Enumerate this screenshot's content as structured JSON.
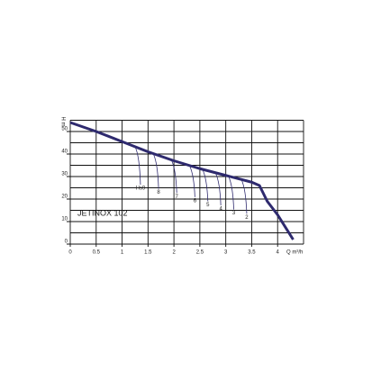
{
  "chart_data": {
    "type": "line",
    "title": "JETINOX 102",
    "x_label": "Q m³/h",
    "y_label": "H m",
    "x": [
      0,
      0.5,
      1,
      1.5,
      2,
      2.5,
      3,
      3.5,
      3.65,
      3.8,
      4.0,
      4.3
    ],
    "series": [
      {
        "name": "JETINOX 102",
        "color": "#2e2a6e",
        "values": [
          54,
          50,
          45.5,
          41,
          37,
          33.5,
          30.5,
          27.5,
          26,
          19,
          13,
          2
        ]
      }
    ],
    "xlim": [
      0,
      4.5
    ],
    "ylim": [
      0,
      55
    ],
    "xticks": [
      0,
      0.5,
      1,
      1.5,
      2,
      2.5,
      3,
      3.5,
      4
    ],
    "yticks": [
      0,
      10,
      20,
      30,
      40,
      50
    ],
    "grid": true,
    "suction_curves": [
      {
        "label": "Hs9",
        "q": 1.25
      },
      {
        "label": "8",
        "q": 1.6
      },
      {
        "label": "7",
        "q": 1.95
      },
      {
        "label": "6",
        "q": 2.3
      },
      {
        "label": "5",
        "q": 2.55
      },
      {
        "label": "4",
        "q": 2.8
      },
      {
        "label": "3",
        "q": 3.05
      },
      {
        "label": "2",
        "q": 3.3
      }
    ]
  }
}
